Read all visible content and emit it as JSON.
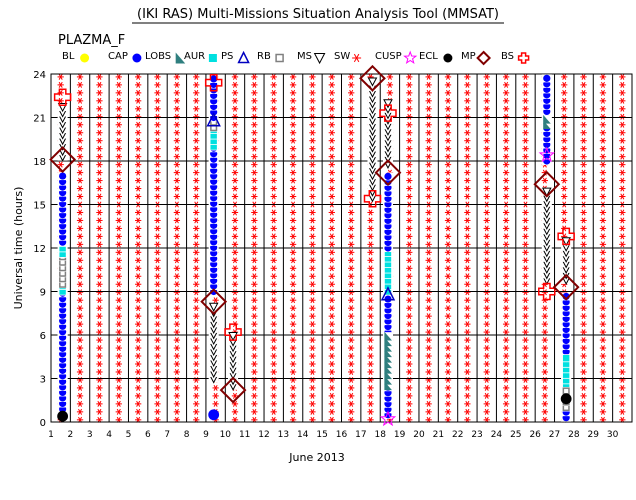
{
  "title": "(IKI RAS) Multi-Missions Situation Analysis Tool (MMSAT)",
  "satellite": "PLAZMA_F",
  "legend": [
    {
      "label": "BL",
      "symbol": "dot",
      "color": "#ffff00"
    },
    {
      "label": "CAP",
      "symbol": "dot",
      "color": "#0000ff"
    },
    {
      "label": "LOBS",
      "symbol": "triangle",
      "color": "#2f7f7f"
    },
    {
      "label": "AUR",
      "symbol": "square",
      "color": "#00e0e0"
    },
    {
      "label": "PS",
      "symbol": "triangle-open",
      "color": "#0000c0"
    },
    {
      "label": "RB",
      "symbol": "square-open",
      "color": "#808080"
    },
    {
      "label": "MS",
      "symbol": "triangle-down-open",
      "color": "#000000"
    },
    {
      "label": "SW",
      "symbol": "asterisk",
      "color": "#ff0000"
    },
    {
      "label": "CUSP",
      "symbol": "star-open",
      "color": "#ff00ff"
    },
    {
      "label": "ECL",
      "symbol": "dot",
      "color": "#000000"
    },
    {
      "label": "MP",
      "symbol": "diamond-open",
      "color": "#800000"
    },
    {
      "label": "BS",
      "symbol": "cross-open",
      "color": "#ff0000"
    }
  ],
  "chart_data": {
    "type": "scatter",
    "title": "(IKI RAS) Multi-Missions Situation Analysis Tool (MMSAT)",
    "xlabel": "June 2013",
    "ylabel": "Universal time (hours)",
    "xlim": [
      1,
      31
    ],
    "ylim": [
      0,
      24
    ],
    "x_ticks": [
      1,
      2,
      3,
      4,
      5,
      6,
      7,
      8,
      9,
      10,
      11,
      12,
      13,
      14,
      15,
      16,
      17,
      18,
      19,
      20,
      21,
      22,
      23,
      24,
      25,
      26,
      27,
      28,
      29,
      30
    ],
    "y_ticks": [
      0,
      3,
      6,
      9,
      12,
      15,
      18,
      21,
      24
    ],
    "grid": true,
    "background_region": "SW",
    "passes": [
      {
        "day": 1.6,
        "segments": [
          {
            "region": "LOBS",
            "from": 0.5,
            "to": 0.9
          },
          {
            "region": "CAP",
            "from": 0.9,
            "to": 9.0
          },
          {
            "region": "AUR",
            "from": 9.0,
            "to": 9.5
          },
          {
            "region": "RB",
            "from": 9.5,
            "to": 11.6
          },
          {
            "region": "AUR",
            "from": 11.6,
            "to": 12.4
          },
          {
            "region": "CAP",
            "from": 12.4,
            "to": 17.0
          },
          {
            "region": "MS",
            "from": 18.3,
            "to": 22.0
          }
        ],
        "events": [
          {
            "region": "MP",
            "ut": 18.1
          },
          {
            "region": "BS",
            "ut": 22.4
          },
          {
            "region": "ECL",
            "ut": 0.4
          }
        ]
      },
      {
        "day": 9.4,
        "segments": [
          {
            "region": "CAP",
            "from": 9.0,
            "to": 19.0
          },
          {
            "region": "AUR",
            "from": 19.0,
            "to": 20.3
          },
          {
            "region": "RB",
            "from": 20.3,
            "to": 20.8
          },
          {
            "region": "CAP",
            "from": 21.0,
            "to": 23.8
          },
          {
            "region": "MS",
            "from": 3.0,
            "to": 8.0
          }
        ],
        "events": [
          {
            "region": "MP",
            "ut": 8.3
          },
          {
            "region": "BS",
            "ut": 23.4
          },
          {
            "region": "PS",
            "ut": 20.8
          },
          {
            "region": "CAP",
            "ut": 0.5
          }
        ]
      },
      {
        "day": 10.4,
        "segments": [
          {
            "region": "MS",
            "from": 2.5,
            "to": 6.0
          }
        ],
        "events": [
          {
            "region": "MP",
            "ut": 2.2
          },
          {
            "region": "BS",
            "ut": 6.2
          }
        ]
      },
      {
        "day": 17.6,
        "segments": [
          {
            "region": "MS",
            "from": 15.5,
            "to": 23.5
          }
        ],
        "events": [
          {
            "region": "MP",
            "ut": 23.7
          },
          {
            "region": "BS",
            "ut": 15.4
          }
        ]
      },
      {
        "day": 18.4,
        "segments": [
          {
            "region": "CAP",
            "from": 0.5,
            "to": 8.8
          },
          {
            "region": "LOBS",
            "from": 2.5,
            "to": 6.2
          },
          {
            "region": "AUR",
            "from": 9.0,
            "to": 12.0
          },
          {
            "region": "CAP",
            "from": 12.0,
            "to": 17.0
          },
          {
            "region": "MS",
            "from": 17.8,
            "to": 22.0
          }
        ],
        "events": [
          {
            "region": "MP",
            "ut": 17.2
          },
          {
            "region": "BS",
            "ut": 21.3
          },
          {
            "region": "CUSP",
            "ut": 0.2
          },
          {
            "region": "PS",
            "ut": 8.8
          }
        ]
      },
      {
        "day": 26.6,
        "segments": [
          {
            "region": "CAP",
            "from": 18.0,
            "to": 23.8
          },
          {
            "region": "LOBS",
            "from": 20.5,
            "to": 21.0
          },
          {
            "region": "MS",
            "from": 9.8,
            "to": 16.0
          }
        ],
        "events": [
          {
            "region": "MP",
            "ut": 16.4
          },
          {
            "region": "BS",
            "ut": 9.0
          },
          {
            "region": "CUSP",
            "ut": 18.4
          }
        ]
      },
      {
        "day": 27.6,
        "segments": [
          {
            "region": "CAP",
            "from": 0.3,
            "to": 9.0
          },
          {
            "region": "AUR",
            "from": 2.5,
            "to": 4.5
          },
          {
            "region": "RB",
            "from": 1.0,
            "to": 2.5
          },
          {
            "region": "MS",
            "from": 9.8,
            "to": 12.5
          }
        ],
        "events": [
          {
            "region": "MP",
            "ut": 9.3
          },
          {
            "region": "BS",
            "ut": 12.8
          },
          {
            "region": "ECL",
            "ut": 1.6
          }
        ]
      }
    ]
  }
}
